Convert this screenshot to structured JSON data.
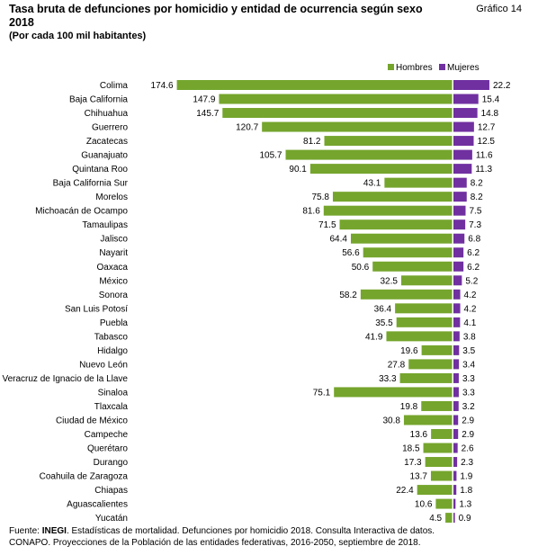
{
  "header": {
    "title_line1": "Tasa bruta de defunciones por homicidio y entidad de ocurrencia según sexo",
    "title_line2": "2018",
    "subtitle": "(Por cada 100 mil habitantes)",
    "grafico_label": "Gráfico 14"
  },
  "colors": {
    "hombres": "#76a52d",
    "mujeres": "#7030a0"
  },
  "chart_data": {
    "type": "bar",
    "orientation": "horizontal-diverging",
    "legend_position": "top-right",
    "grid": false,
    "categories": [
      "Colima",
      "Baja California",
      "Chihuahua",
      "Guerrero",
      "Zacatecas",
      "Guanajuato",
      "Quintana Roo",
      "Baja California Sur",
      "Morelos",
      "Michoacán de Ocampo",
      "Tamaulipas",
      "Jalisco",
      "Nayarit",
      "Oaxaca",
      "México",
      "Sonora",
      "San Luis Potosí",
      "Puebla",
      "Tabasco",
      "Hidalgo",
      "Nuevo León",
      "Veracruz de Ignacio de la Llave",
      "Sinaloa",
      "Tlaxcala",
      "Ciudad de México",
      "Campeche",
      "Querétaro",
      "Durango",
      "Coahuila de Zaragoza",
      "Chiapas",
      "Aguascalientes",
      "Yucatán"
    ],
    "series": [
      {
        "name": "Hombres",
        "color": "#76a52d",
        "values": [
          174.6,
          147.9,
          145.7,
          120.7,
          81.2,
          105.7,
          90.1,
          43.1,
          75.8,
          81.6,
          71.5,
          64.4,
          56.6,
          50.6,
          32.5,
          58.2,
          36.4,
          35.5,
          41.9,
          19.6,
          27.8,
          33.3,
          75.1,
          19.8,
          30.8,
          13.6,
          18.5,
          17.3,
          13.7,
          22.4,
          10.6,
          4.5
        ],
        "labels": [
          "174.6",
          "147.9",
          "145.7",
          "120.7",
          "81.2",
          "105.7",
          "90.1",
          "43.1",
          "75.8",
          "81.6",
          "71.5",
          "64.4",
          "56.6",
          "50.6",
          "32.5",
          "58.2",
          "36.4",
          "35.5",
          "41.9",
          "19.6",
          "27.8",
          "33.3",
          "75.1",
          "19.8",
          "30.8",
          "13.6",
          "18.5",
          "17.3",
          "13.7",
          "22.4",
          "10.6",
          "4.5"
        ]
      },
      {
        "name": "Mujeres",
        "color": "#7030a0",
        "values": [
          22.2,
          15.4,
          14.8,
          12.7,
          12.5,
          11.6,
          11.3,
          8.2,
          8.2,
          7.5,
          7.3,
          6.8,
          6.2,
          6.2,
          5.2,
          4.2,
          4.2,
          4.1,
          3.8,
          3.5,
          3.4,
          3.3,
          3.3,
          3.2,
          2.9,
          2.9,
          2.6,
          2.3,
          1.9,
          1.8,
          1.3,
          0.9
        ],
        "labels": [
          "22.2",
          "15.4",
          "14.8",
          "12.7",
          "12.5",
          "11.6",
          "11.3",
          "8.2",
          "8.2",
          "7.5",
          "7.3",
          "6.8",
          "6.2",
          "6.2",
          "5.2",
          "4.2",
          "4.2",
          "4.1",
          "3.8",
          "3.5",
          "3.4",
          "3.3",
          "3.3",
          "3.2",
          "2.9",
          "2.9",
          "2.6",
          "2.3",
          "1.9",
          "1.8",
          "1.3",
          "0.9"
        ]
      }
    ]
  },
  "source": {
    "label": "Fuente:",
    "org": "INEGI",
    "line1_rest": ". Estadísticas de mortalidad. Defunciones por homicidio 2018. Consulta Interactiva de datos.",
    "line2": "CONAPO. Proyecciones de la Población de las entidades federativas, 2016-2050, septiembre de 2018."
  }
}
